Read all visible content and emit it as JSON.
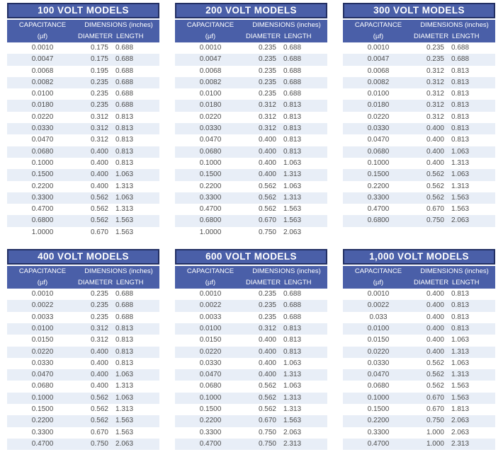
{
  "theme": {
    "header_blue": "#4a5fa8",
    "header_border_navy": "#222f63",
    "header_text": "#ffffff",
    "row_alt_blue": "#e8eef7",
    "row_white": "#ffffff",
    "data_text": "#4d4d4d"
  },
  "tables": [
    {
      "title": "100 VOLT MODELS",
      "headers": {
        "capacitance": "CAPACITANCE",
        "unit": "(µf)",
        "dimensions": "DIMENSIONS (inches)",
        "diameter": "DIAMETER",
        "length": "LENGTH"
      },
      "rows": [
        [
          "0.0010",
          "0.175",
          "0.688"
        ],
        [
          "0.0047",
          "0.175",
          "0.688"
        ],
        [
          "0.0068",
          "0.195",
          "0.688"
        ],
        [
          "0.0082",
          "0.235",
          "0.688"
        ],
        [
          "0.0100",
          "0.235",
          "0.688"
        ],
        [
          "0.0180",
          "0.235",
          "0.688"
        ],
        [
          "0.0220",
          "0.312",
          "0.813"
        ],
        [
          "0.0330",
          "0.312",
          "0.813"
        ],
        [
          "0.0470",
          "0.312",
          "0.813"
        ],
        [
          "0.0680",
          "0.400",
          "0.813"
        ],
        [
          "0.1000",
          "0.400",
          "0.813"
        ],
        [
          "0.1500",
          "0.400",
          "1.063"
        ],
        [
          "0.2200",
          "0.400",
          "1.313"
        ],
        [
          "0.3300",
          "0.562",
          "1.063"
        ],
        [
          "0.4700",
          "0.562",
          "1.313"
        ],
        [
          "0.6800",
          "0.562",
          "1.563"
        ],
        [
          "1.0000",
          "0.670",
          "1.563"
        ]
      ]
    },
    {
      "title": "200 VOLT MODELS",
      "headers": {
        "capacitance": "CAPACITANCE",
        "unit": "(µf)",
        "dimensions": "DIMENSIONS (inches)",
        "diameter": "DIAMETER",
        "length": "LENGTH"
      },
      "rows": [
        [
          "0.0010",
          "0.235",
          "0.688"
        ],
        [
          "0.0047",
          "0.235",
          "0.688"
        ],
        [
          "0.0068",
          "0.235",
          "0.688"
        ],
        [
          "0.0082",
          "0.235",
          "0.688"
        ],
        [
          "0.0100",
          "0.235",
          "0.688"
        ],
        [
          "0.0180",
          "0.312",
          "0.813"
        ],
        [
          "0.0220",
          "0.312",
          "0.813"
        ],
        [
          "0.0330",
          "0.312",
          "0.813"
        ],
        [
          "0.0470",
          "0.400",
          "0.813"
        ],
        [
          "0.0680",
          "0.400",
          "0.813"
        ],
        [
          "0.1000",
          "0.400",
          "1.063"
        ],
        [
          "0.1500",
          "0.400",
          "1.313"
        ],
        [
          "0.2200",
          "0.562",
          "1.063"
        ],
        [
          "0.3300",
          "0.562",
          "1.313"
        ],
        [
          "0.4700",
          "0.562",
          "1.563"
        ],
        [
          "0.6800",
          "0.670",
          "1.563"
        ],
        [
          "1.0000",
          "0.750",
          "2.063"
        ]
      ]
    },
    {
      "title": "300 VOLT MODELS",
      "headers": {
        "capacitance": "CAPACITANCE",
        "unit": "(µf)",
        "dimensions": "DIMENSIONS (inches)",
        "diameter": "DIAMETER",
        "length": "LENGTH"
      },
      "rows": [
        [
          "0.0010",
          "0.235",
          "0.688"
        ],
        [
          "0.0047",
          "0.235",
          "0.688"
        ],
        [
          "0.0068",
          "0.312",
          "0.813"
        ],
        [
          "0.0082",
          "0.312",
          "0.813"
        ],
        [
          "0.0100",
          "0.312",
          "0.813"
        ],
        [
          "0.0180",
          "0.312",
          "0.813"
        ],
        [
          "0.0220",
          "0.312",
          "0.813"
        ],
        [
          "0.0330",
          "0.400",
          "0.813"
        ],
        [
          "0.0470",
          "0.400",
          "0.813"
        ],
        [
          "0.0680",
          "0.400",
          "1.063"
        ],
        [
          "0.1000",
          "0.400",
          "1.313"
        ],
        [
          "0.1500",
          "0.562",
          "1.063"
        ],
        [
          "0.2200",
          "0.562",
          "1.313"
        ],
        [
          "0.3300",
          "0.562",
          "1.563"
        ],
        [
          "0.4700",
          "0.670",
          "1.563"
        ],
        [
          "0.6800",
          "0.750",
          "2.063"
        ]
      ]
    },
    {
      "title": "400 VOLT MODELS",
      "headers": {
        "capacitance": "CAPACITANCE",
        "unit": "(µf)",
        "dimensions": "DIMENSIONS (inches)",
        "diameter": "DIAMETER",
        "length": "LENGTH"
      },
      "rows": [
        [
          "0.0010",
          "0.235",
          "0.688"
        ],
        [
          "0.0022",
          "0.235",
          "0.688"
        ],
        [
          "0.0033",
          "0.235",
          "0.688"
        ],
        [
          "0.0100",
          "0.312",
          "0.813"
        ],
        [
          "0.0150",
          "0.312",
          "0.813"
        ],
        [
          "0.0220",
          "0.400",
          "0.813"
        ],
        [
          "0.0330",
          "0.400",
          "0.813"
        ],
        [
          "0.0470",
          "0.400",
          "1.063"
        ],
        [
          "0.0680",
          "0.400",
          "1.313"
        ],
        [
          "0.1000",
          "0.562",
          "1.063"
        ],
        [
          "0.1500",
          "0.562",
          "1.313"
        ],
        [
          "0.2200",
          "0.562",
          "1.563"
        ],
        [
          "0.3300",
          "0.670",
          "1.563"
        ],
        [
          "0.4700",
          "0.750",
          "2.063"
        ]
      ]
    },
    {
      "title": "600 VOLT MODELS",
      "headers": {
        "capacitance": "CAPACITANCE",
        "unit": "(µf)",
        "dimensions": "DIMENSIONS (inches)",
        "diameter": "DIAMETER",
        "length": "LENGTH"
      },
      "rows": [
        [
          "0.0010",
          "0.235",
          "0.688"
        ],
        [
          "0.0022",
          "0.235",
          "0.688"
        ],
        [
          "0.0033",
          "0.235",
          "0.688"
        ],
        [
          "0.0100",
          "0.312",
          "0.813"
        ],
        [
          "0.0150",
          "0.400",
          "0.813"
        ],
        [
          "0.0220",
          "0.400",
          "0.813"
        ],
        [
          "0.0330",
          "0.400",
          "1.063"
        ],
        [
          "0.0470",
          "0.400",
          "1.313"
        ],
        [
          "0.0680",
          "0.562",
          "1.063"
        ],
        [
          "0.1000",
          "0.562",
          "1.313"
        ],
        [
          "0.1500",
          "0.562",
          "1.313"
        ],
        [
          "0.2200",
          "0.670",
          "1.563"
        ],
        [
          "0.3300",
          "0.750",
          "2.063"
        ],
        [
          "0.4700",
          "0.750",
          "2.313"
        ]
      ]
    },
    {
      "title": "1,000 VOLT MODELS",
      "headers": {
        "capacitance": "CAPACITANCE",
        "unit": "(µf)",
        "dimensions": "DIMENSIONS (inches)",
        "diameter": "DIAMETER",
        "length": "LENGTH"
      },
      "rows": [
        [
          "0.0010",
          "0.400",
          "0.813"
        ],
        [
          "0.0022",
          "0.400",
          "0.813"
        ],
        [
          "0.033",
          "0.400",
          "0.813"
        ],
        [
          "0.0100",
          "0.400",
          "0.813"
        ],
        [
          "0.0150",
          "0.400",
          "1.063"
        ],
        [
          "0.0220",
          "0.400",
          "1.313"
        ],
        [
          "0.0330",
          "0.562",
          "1.063"
        ],
        [
          "0.0470",
          "0.562",
          "1.313"
        ],
        [
          "0.0680",
          "0.562",
          "1.563"
        ],
        [
          "0.1000",
          "0.670",
          "1.563"
        ],
        [
          "0.1500",
          "0.670",
          "1.813"
        ],
        [
          "0.2200",
          "0.750",
          "2.063"
        ],
        [
          "0.3300",
          "1.000",
          "2.063"
        ],
        [
          "0.4700",
          "1.000",
          "2.313"
        ]
      ]
    }
  ]
}
